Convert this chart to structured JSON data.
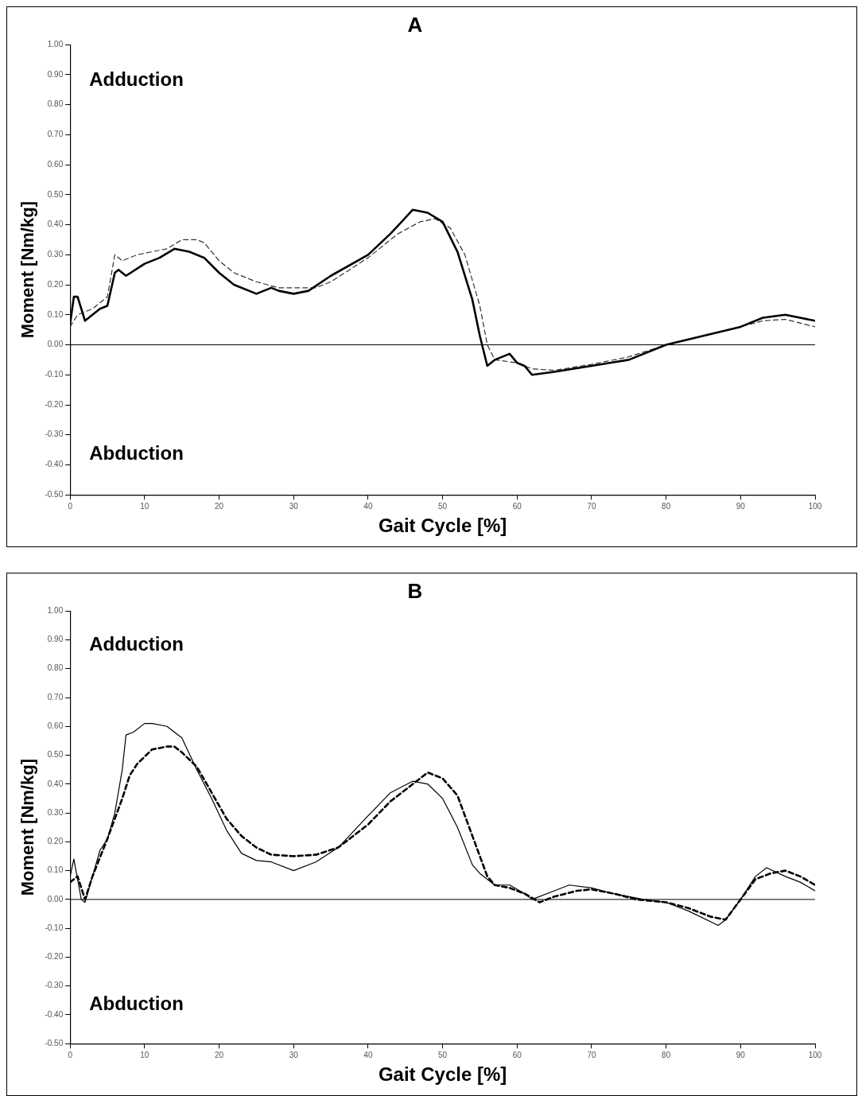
{
  "chart_data": [
    {
      "type": "line",
      "title": "A",
      "xlabel": "Gait Cycle [%]",
      "ylabel": "Moment [Nm/kg]",
      "annotations": [
        "Adduction",
        "Abduction"
      ],
      "xlim": [
        0,
        100
      ],
      "xticks": [
        0,
        10,
        20,
        30,
        40,
        50,
        60,
        70,
        80,
        90,
        100
      ],
      "ylim": [
        -0.5,
        1.0
      ],
      "yticks": [
        {
          "value": -0.5,
          "label": "-0.50"
        },
        {
          "value": -0.4,
          "label": "-0.40"
        },
        {
          "value": -0.3,
          "label": "-0.30"
        },
        {
          "value": -0.2,
          "label": "-0.20"
        },
        {
          "value": -0.1,
          "label": "-0.10"
        },
        {
          "value": 0,
          "label": "0.00"
        },
        {
          "value": 0.1,
          "label": "0.10"
        },
        {
          "value": 0.2,
          "label": "0.20"
        },
        {
          "value": 0.3,
          "label": "0.30"
        },
        {
          "value": 0.4,
          "label": "0.40"
        },
        {
          "value": 0.5,
          "label": "0.50"
        },
        {
          "value": 0.6,
          "label": "0.60"
        },
        {
          "value": 0.7,
          "label": "0.70"
        },
        {
          "value": 0.8,
          "label": "0.80"
        },
        {
          "value": 0.9,
          "label": "0.90"
        },
        {
          "value": 1.0,
          "label": "1.00"
        }
      ],
      "grid": false,
      "legend": false,
      "marker": "none",
      "ref_lines": [
        {
          "axis": "y",
          "value": 0,
          "color": "#000000"
        }
      ],
      "series": [
        {
          "color": "#000000",
          "line_style": "solid",
          "x": [
            0,
            0.5,
            1,
            1.5,
            2,
            3,
            4,
            5,
            6,
            6.5,
            7.5,
            10,
            12,
            14,
            16,
            18,
            20,
            22,
            25,
            27,
            28,
            30,
            32,
            35,
            40,
            43,
            46,
            48,
            50,
            52,
            54,
            55,
            56,
            57,
            58,
            59,
            60,
            61,
            62,
            65,
            70,
            75,
            80,
            85,
            90,
            93,
            96,
            100
          ],
          "values": [
            0.07,
            0.16,
            0.16,
            0.12,
            0.08,
            0.1,
            0.12,
            0.13,
            0.24,
            0.25,
            0.23,
            0.27,
            0.29,
            0.32,
            0.31,
            0.29,
            0.24,
            0.2,
            0.17,
            0.19,
            0.18,
            0.17,
            0.18,
            0.23,
            0.3,
            0.37,
            0.45,
            0.44,
            0.41,
            0.31,
            0.15,
            0.03,
            -0.07,
            -0.05,
            -0.04,
            -0.03,
            -0.06,
            -0.07,
            -0.1,
            -0.09,
            -0.07,
            -0.05,
            0.0,
            0.03,
            0.06,
            0.09,
            0.1,
            0.08
          ]
        },
        {
          "color": "#333333",
          "line_style": "dashed",
          "x": [
            0,
            1,
            3,
            5,
            6,
            7,
            9,
            11,
            13,
            15,
            17,
            18,
            20,
            22,
            25,
            28,
            30,
            33,
            35,
            40,
            44,
            47,
            49,
            51,
            53,
            55,
            56,
            57,
            60,
            62,
            65,
            70,
            75,
            80,
            85,
            90,
            93,
            96,
            100
          ],
          "values": [
            0.06,
            0.1,
            0.12,
            0.16,
            0.3,
            0.28,
            0.3,
            0.31,
            0.32,
            0.35,
            0.35,
            0.34,
            0.28,
            0.24,
            0.21,
            0.19,
            0.19,
            0.19,
            0.21,
            0.29,
            0.37,
            0.41,
            0.42,
            0.39,
            0.3,
            0.13,
            0.0,
            -0.05,
            -0.06,
            -0.08,
            -0.085,
            -0.065,
            -0.04,
            0.0,
            0.03,
            0.06,
            0.08,
            0.085,
            0.06
          ]
        }
      ]
    },
    {
      "type": "line",
      "title": "B",
      "xlabel": "Gait Cycle [%]",
      "ylabel": "Moment [Nm/kg]",
      "annotations": [
        "Adduction",
        "Abduction"
      ],
      "xlim": [
        0,
        100
      ],
      "xticks": [
        0,
        10,
        20,
        30,
        40,
        50,
        60,
        70,
        80,
        90,
        100
      ],
      "ylim": [
        -0.5,
        1.0
      ],
      "yticks": [
        {
          "value": -0.5,
          "label": "-0.50"
        },
        {
          "value": -0.4,
          "label": "-0.40"
        },
        {
          "value": -0.3,
          "label": "-0.30"
        },
        {
          "value": -0.2,
          "label": "-0.20"
        },
        {
          "value": -0.1,
          "label": "-0.10"
        },
        {
          "value": 0,
          "label": "0.00"
        },
        {
          "value": 0.1,
          "label": "0.10"
        },
        {
          "value": 0.2,
          "label": "0.20"
        },
        {
          "value": 0.3,
          "label": "0.30"
        },
        {
          "value": 0.4,
          "label": "0.40"
        },
        {
          "value": 0.5,
          "label": "0.50"
        },
        {
          "value": 0.6,
          "label": "0.60"
        },
        {
          "value": 0.7,
          "label": "0.70"
        },
        {
          "value": 0.8,
          "label": "0.80"
        },
        {
          "value": 0.9,
          "label": "0.90"
        },
        {
          "value": 1.0,
          "label": "1.00"
        }
      ],
      "grid": false,
      "legend": false,
      "marker": "none",
      "ref_lines": [
        {
          "axis": "y",
          "value": 0,
          "color": "#000000"
        }
      ],
      "series": [
        {
          "color": "#000000",
          "line_style": "solid",
          "x": [
            0,
            0.5,
            1,
            1.5,
            2,
            3,
            4,
            5,
            6,
            7,
            7.5,
            8.5,
            10,
            11,
            13,
            15,
            17,
            19,
            21,
            23,
            25,
            27,
            30,
            33,
            36,
            40,
            43,
            46,
            48,
            50,
            52,
            54,
            55,
            57,
            59,
            61,
            62,
            65,
            67,
            70,
            73,
            77,
            80,
            83,
            87,
            88,
            90,
            92,
            93.5,
            96,
            98,
            100
          ],
          "values": [
            0.08,
            0.14,
            0.07,
            0.0,
            -0.01,
            0.08,
            0.17,
            0.21,
            0.3,
            0.45,
            0.57,
            0.58,
            0.61,
            0.61,
            0.6,
            0.56,
            0.45,
            0.35,
            0.24,
            0.16,
            0.135,
            0.13,
            0.1,
            0.13,
            0.18,
            0.29,
            0.37,
            0.41,
            0.4,
            0.35,
            0.25,
            0.12,
            0.09,
            0.05,
            0.05,
            0.02,
            0.0,
            0.03,
            0.05,
            0.04,
            0.02,
            0.0,
            -0.01,
            -0.04,
            -0.09,
            -0.07,
            0.0,
            0.08,
            0.11,
            0.08,
            0.06,
            0.03
          ]
        },
        {
          "color": "#000000",
          "line_style": "dashed",
          "x": [
            0,
            1,
            2,
            3,
            5,
            7,
            8,
            9,
            11,
            13,
            14,
            15,
            17,
            19,
            21,
            23,
            25,
            27,
            30,
            33,
            36,
            40,
            43,
            46,
            48,
            50,
            52,
            54,
            56,
            57,
            59,
            61,
            63,
            65,
            68,
            70,
            73,
            76,
            80,
            83,
            86,
            88,
            90,
            92,
            94,
            96,
            98,
            100
          ],
          "values": [
            0.06,
            0.08,
            0.0,
            0.08,
            0.21,
            0.35,
            0.43,
            0.47,
            0.52,
            0.53,
            0.53,
            0.51,
            0.46,
            0.37,
            0.28,
            0.22,
            0.18,
            0.155,
            0.15,
            0.155,
            0.18,
            0.26,
            0.34,
            0.4,
            0.44,
            0.42,
            0.36,
            0.22,
            0.08,
            0.05,
            0.04,
            0.02,
            -0.01,
            0.01,
            0.03,
            0.035,
            0.02,
            0.0,
            -0.01,
            -0.03,
            -0.06,
            -0.07,
            0.0,
            0.07,
            0.09,
            0.1,
            0.08,
            0.05
          ]
        }
      ]
    }
  ]
}
